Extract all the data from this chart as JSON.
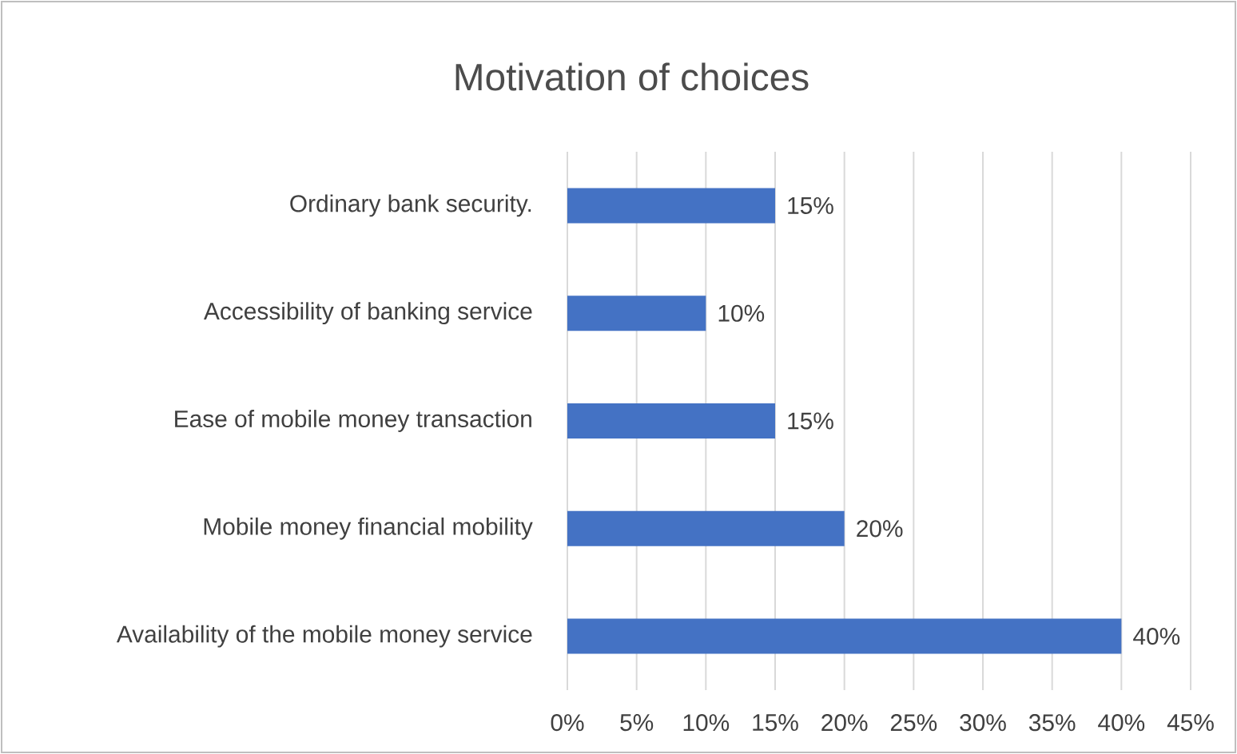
{
  "chart_data": {
    "type": "bar",
    "orientation": "horizontal",
    "title": "Motivation of choices",
    "categories": [
      "Ordinary bank security.",
      "Accessibility of banking service",
      "Ease of mobile money transaction",
      "Mobile money financial mobility",
      "Availability of the mobile money service"
    ],
    "values": [
      15,
      10,
      15,
      20,
      40
    ],
    "value_labels": [
      "15%",
      "10%",
      "15%",
      "20%",
      "40%"
    ],
    "color": "#4472c4",
    "xlim": [
      0,
      45
    ],
    "xticks": [
      {
        "value": 0,
        "label": "0%"
      },
      {
        "value": 5,
        "label": "5%"
      },
      {
        "value": 10,
        "label": "10%"
      },
      {
        "value": 15,
        "label": "15%"
      },
      {
        "value": 20,
        "label": "20%"
      },
      {
        "value": 25,
        "label": "25%"
      },
      {
        "value": 30,
        "label": "30%"
      },
      {
        "value": 35,
        "label": "35%"
      },
      {
        "value": 40,
        "label": "40%"
      },
      {
        "value": 45,
        "label": "45%"
      }
    ],
    "grid": "x"
  }
}
